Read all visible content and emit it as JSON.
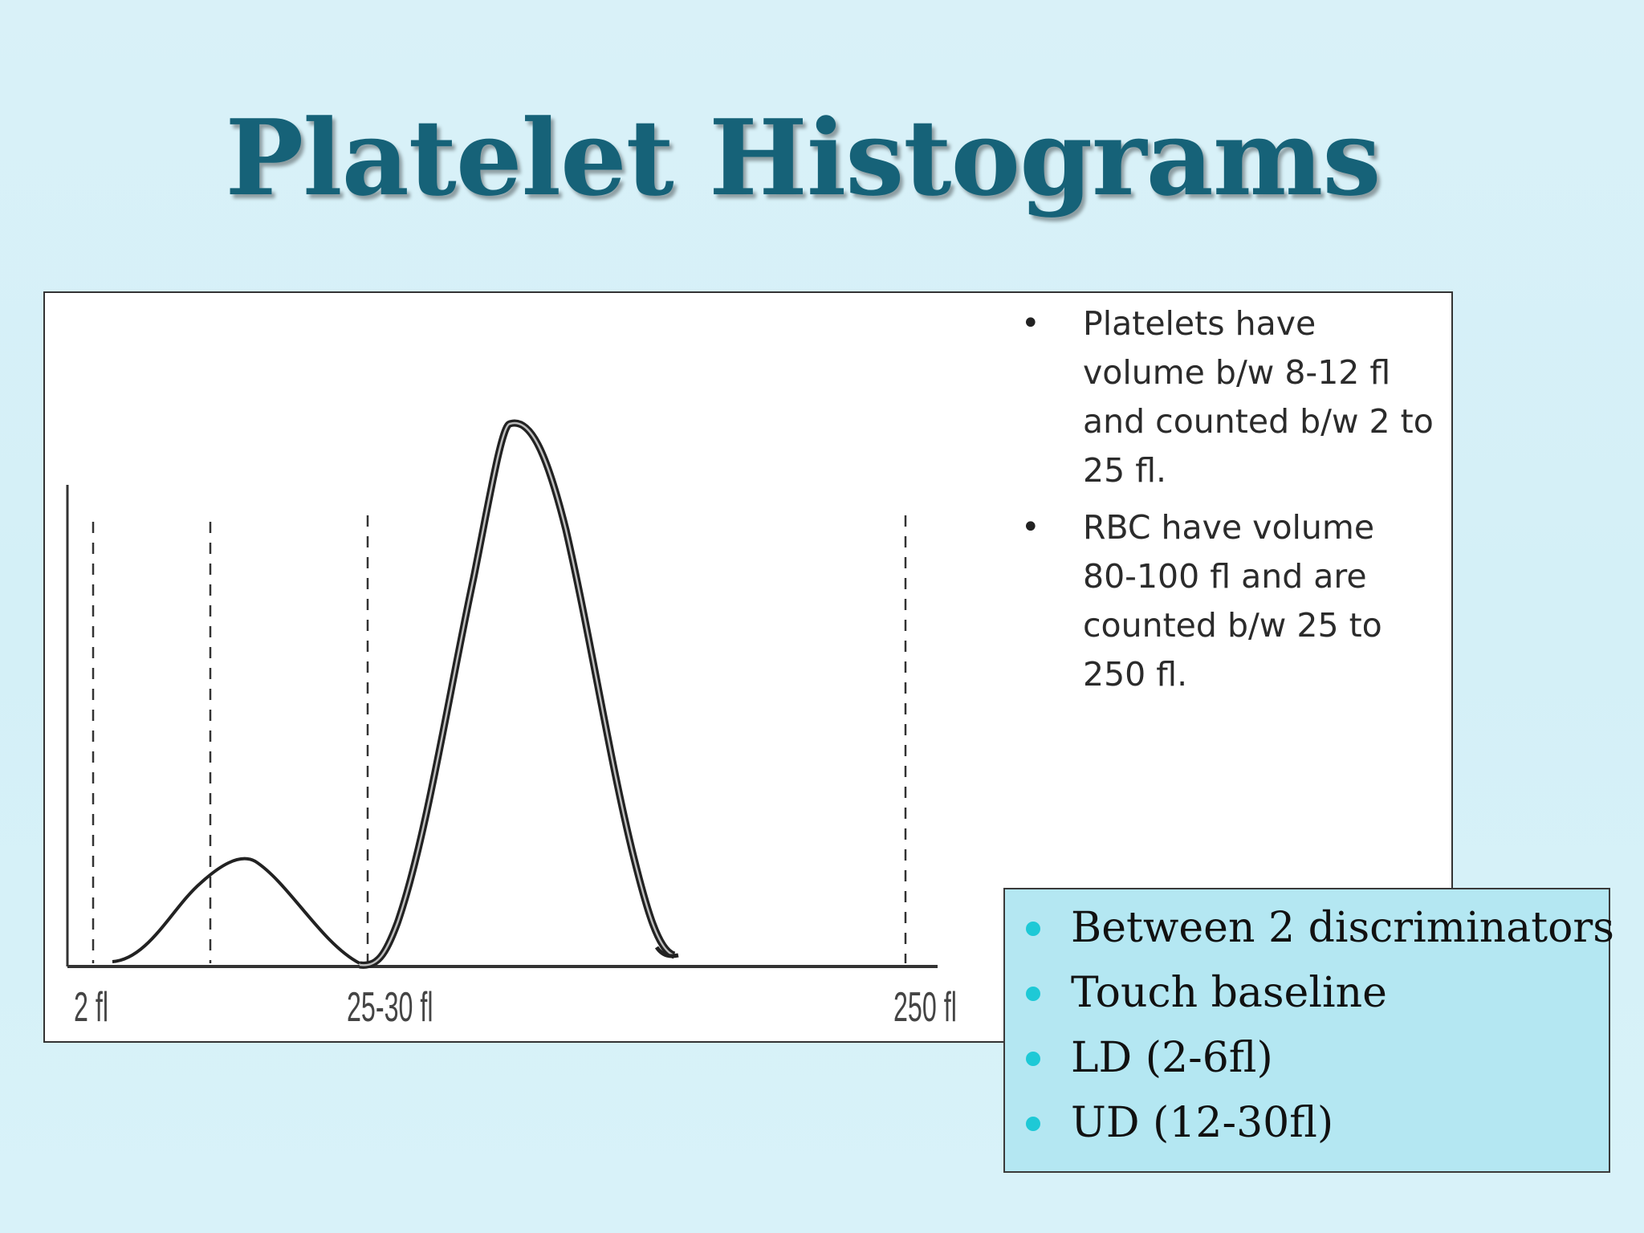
{
  "title": "Platelet Histograms",
  "histogram": {
    "axis_labels": [
      "2 fl",
      "25-30 fl",
      "250 fl"
    ],
    "discriminator_lines": 4
  },
  "notes": [
    "Platelets have volume b/w 8-12 fl and counted b/w 2 to 25 fl.",
    "RBC have volume 80-100 fl and are counted b/w 25 to 250 fl."
  ],
  "callout": {
    "items": [
      "Between 2 discriminators",
      "Touch baseline",
      "LD (2-6fl)",
      "UD (12-30fl)"
    ],
    "bullet_color": "#1ec9d6",
    "background": "#b4e7f2"
  }
}
